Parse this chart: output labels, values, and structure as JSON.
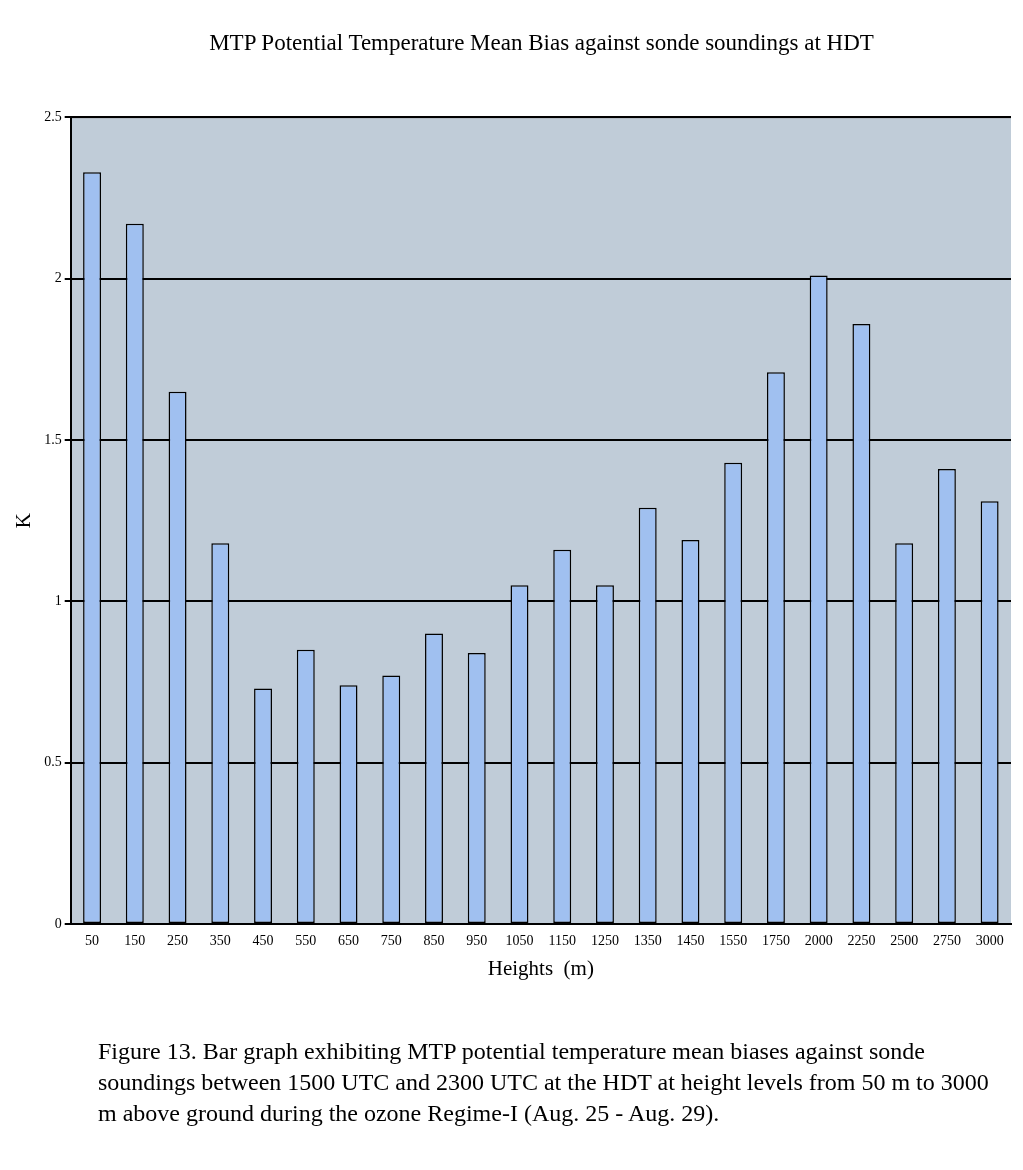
{
  "chart_data": {
    "type": "bar",
    "title": "MTP Potential Temperature Mean Bias against sonde soundings at HDT",
    "xlabel": "Heights  (m)",
    "ylabel": "K",
    "categories": [
      "50",
      "150",
      "250",
      "350",
      "450",
      "550",
      "650",
      "750",
      "850",
      "950",
      "1050",
      "1150",
      "1250",
      "1350",
      "1450",
      "1550",
      "1750",
      "2000",
      "2250",
      "2500",
      "2750",
      "3000"
    ],
    "values": [
      2.33,
      2.17,
      1.65,
      1.18,
      0.73,
      0.85,
      0.74,
      0.77,
      0.9,
      0.84,
      1.05,
      1.16,
      1.05,
      1.29,
      1.19,
      1.43,
      1.71,
      2.01,
      1.86,
      1.18,
      1.41,
      1.31
    ],
    "color": "#a0c0f0",
    "ylim": [
      0,
      2.5
    ],
    "yticks": [
      0,
      0.5,
      1,
      1.5,
      2,
      2.5
    ],
    "grid": "y",
    "legend": false,
    "annotations": [
      "Figure 13. Bar graph exhibiting MTP potential temperature mean biases against sonde soundings between 1500 UTC and 2300 UTC at the HDT at height levels from 50 m to 3000 m above ground during the ozone Regime-I (Aug. 25 - Aug. 29)."
    ]
  }
}
